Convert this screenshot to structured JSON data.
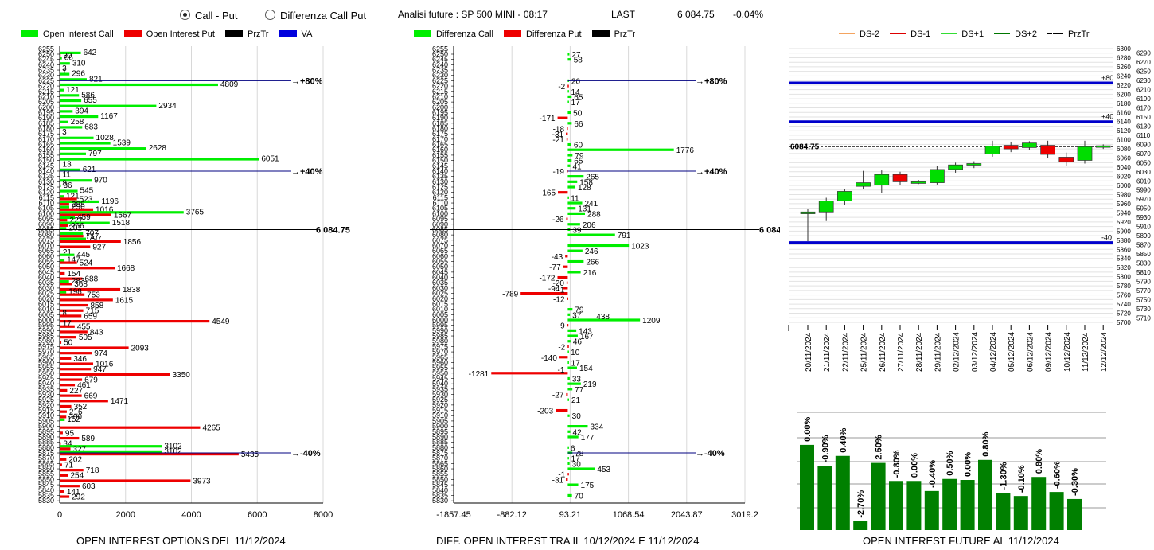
{
  "header": {
    "radio_call_put": "Call - Put",
    "radio_diff": "Differenza Call Put",
    "analisi": "Analisi future : SP 500 MINI - 08:17",
    "last_label": "LAST",
    "last_value": "6 084.75",
    "change": "-0.04%"
  },
  "legend1": {
    "call": "Open Interest Call",
    "put": "Open Interest Put",
    "prztr": "PrzTr",
    "va": "VA"
  },
  "legend2": {
    "call": "Differenza Call",
    "put": "Differenza Put",
    "prztr": "PrzTr"
  },
  "legend3": {
    "ds_2": "DS-2",
    "ds_1": "DS-1",
    "ds1": "DS+1",
    "ds2": "DS+2",
    "prztr": "PrzTr"
  },
  "colors": {
    "call": "#00ee00",
    "put": "#ee0000",
    "ref_line": "#000080",
    "candle_up": "#00dd00",
    "candle_down": "#ee0000",
    "bar_green": "#008000",
    "ds_2": "#f4a460",
    "ds_1": "#dd0000",
    "ds1": "#33dd33",
    "ds2": "#007700"
  },
  "footers": {
    "f1": "OPEN INTEREST OPTIONS DEL 11/12/2024",
    "f2": "DIFF. OPEN INTEREST TRA IL 10/12/2024 E 11/12/2024",
    "f3": "OPEN INTEREST FUTURE AL 11/12/2024"
  },
  "chart_data": [
    {
      "type": "bar",
      "orientation": "horizontal",
      "strikes": [
        6250,
        6245,
        6240,
        6235,
        6230,
        6225,
        6220,
        6215,
        6210,
        6205,
        6200,
        6195,
        6190,
        6185,
        6180,
        6175,
        6170,
        6165,
        6160,
        6155,
        6150,
        6145,
        6140,
        6135,
        6130,
        6125,
        6120,
        6115,
        6110,
        6105,
        6100,
        6095,
        6090,
        6085,
        6080,
        6075,
        6070,
        6065,
        6060,
        6055,
        6050,
        6045,
        6040,
        6035,
        6030,
        6025,
        6020,
        6015,
        6010,
        6005,
        6000,
        5995,
        5990,
        5985,
        5980,
        5975,
        5970,
        5965,
        5960,
        5955,
        5950,
        5945,
        5940,
        5935,
        5930,
        5925,
        5920,
        5915,
        5910,
        5905,
        5900,
        5895,
        5890,
        5885,
        5880,
        5875,
        5870,
        5865,
        5860,
        5855,
        5850,
        5845,
        5840,
        5835,
        5830
      ],
      "extra_tick": 6255,
      "call_values": {
        "6250": 642,
        "6245": 66,
        "6240": 310,
        "6235": 3,
        "6230": 296,
        "6225": 821,
        "6220": 4809,
        "6215": 121,
        "6210": 586,
        "6205": 655,
        "6200": 2934,
        "6195": 394,
        "6190": 1167,
        "6185": 258,
        "6180": 683,
        "6175": 3,
        "6170": 1028,
        "6165": 1539,
        "6160": 2628,
        "6155": 797,
        "6150": 6051,
        "6145": 13,
        "6140": 621,
        "6135": 11,
        "6130": 970,
        "6125": 36,
        "6120": 545,
        "6115": 121,
        "6110": 1196,
        "6105": 290,
        "6100": 3765,
        "6095": 459,
        "6090": 1518,
        "6085": 201,
        "6080": 707,
        "6075": 797,
        "6060": 445,
        "6055": 147,
        "6035": 283,
        "6025": 198,
        "6005": 8,
        "5995": 17,
        "5905": 152,
        "5880": 3102,
        "5875": 3102
      },
      "put_values": {
        "6250": 30,
        "6235": 1,
        "6130": 8,
        "6115": 523,
        "6110": 288,
        "6105": 1016,
        "6100": 1567,
        "6095": 227,
        "6090": 266,
        "6080": 717,
        "6075": 1856,
        "6070": 927,
        "6065": 21,
        "6055": 524,
        "6050": 1668,
        "6045": 154,
        "6040": 688,
        "6035": 368,
        "6030": 1838,
        "6025": 753,
        "6020": 1615,
        "6015": 858,
        "6010": 715,
        "6005": 659,
        "6000": 4549,
        "5995": 455,
        "5990": 843,
        "5985": 505,
        "5980": 50,
        "5975": 2093,
        "5970": 974,
        "5965": 346,
        "5960": 1016,
        "5955": 947,
        "5950": 3350,
        "5945": 679,
        "5940": 461,
        "5935": 227,
        "5930": 669,
        "5925": 1471,
        "5920": 352,
        "5915": 216,
        "5910": 200,
        "5900": 4265,
        "5895": 95,
        "5890": 589,
        "5885": 34,
        "5880": 327,
        "5875": 5435,
        "5870": 202,
        "5865": 71,
        "5860": 718,
        "5855": 254,
        "5850": 3973,
        "5845": 603,
        "5840": 141,
        "5835": 292
      },
      "xticks": [
        0,
        2000,
        4000,
        6000,
        8000
      ],
      "xlim": [
        0,
        8000
      ],
      "ref_lines": [
        {
          "strike": 6225,
          "label": "+80%"
        },
        {
          "strike": 6140,
          "label": "+40%"
        },
        {
          "strike": 5875,
          "label": "-40%"
        }
      ],
      "price_line": {
        "strike": 6085,
        "label": "6 084.75"
      }
    },
    {
      "type": "bar",
      "orientation": "horizontal",
      "diff_values": {
        "6250": 27,
        "6245": 58,
        "6225": 20,
        "6220": -2,
        "6215": 14,
        "6210": 65,
        "6205": 17,
        "6195": 50,
        "6190": -171,
        "6185": 66,
        "6180": -18,
        "6175": -31,
        "6170": -21,
        "6165": 60,
        "6160": 1776,
        "6155": 79,
        "6150": 65,
        "6145": 41,
        "6140": -19,
        "6135": 265,
        "6130": 158,
        "6125": 128,
        "6120": -165,
        "6115": 11,
        "6110": 241,
        "6105": 131,
        "6100": 288,
        "6095": -26,
        "6090": 206,
        "6085": 39,
        "6080": 791,
        "6070": 1023,
        "6065": 246,
        "6060": -43,
        "6055": 266,
        "6050": -77,
        "6045": 216,
        "6040": -172,
        "6035": -20,
        "6030": -94,
        "6025": -789,
        "6020": -12,
        "6010": 79,
        "6005": 37,
        "6000": 1209,
        "5995": -9,
        "5990": 143,
        "5985": 167,
        "5980": 46,
        "5975": -2,
        "5970": 10,
        "5965": -140,
        "5960": 17,
        "5955": 154,
        "5950": -1281,
        "5945": 33,
        "5940": 219,
        "5935": 77,
        "5930": -27,
        "5925": 21,
        "5915": -203,
        "5910": 30,
        "5900": 334,
        "5895": 42,
        "5890": 177,
        "5880": 6,
        "5875": 78,
        "5870": 17,
        "5865": 30,
        "5860": 453,
        "5855": -1,
        "5850": -31,
        "5845": 175,
        "5835": 70
      },
      "extra_labels": {
        "6000": 438,
        "5950": -1,
        "6025": -1
      },
      "xticks": [
        -1857.45,
        -882.12,
        93.21,
        1068.54,
        2043.87,
        3019.2
      ],
      "xtick_labels": [
        "-1857.45",
        "-882.12",
        "93.21",
        "1068.54",
        "2043.87",
        "3019.2"
      ],
      "xlim": [
        -1857.45,
        3019.2
      ],
      "ref_lines": [
        {
          "strike": 6225,
          "label": "+80%"
        },
        {
          "strike": 6140,
          "label": "+40%"
        },
        {
          "strike": 5875,
          "label": "-40%"
        }
      ],
      "price_line": {
        "strike": 6085,
        "label": "6 084.75"
      }
    },
    {
      "type": "candlestick",
      "dates": [
        "20/11/2024",
        "21/11/2024",
        "22/11/2024",
        "25/11/2024",
        "26/11/2024",
        "27/11/2024",
        "28/11/2024",
        "29/11/2024",
        "02/12/2024",
        "03/12/2024",
        "04/12/2024",
        "05/12/2024",
        "06/12/2024",
        "09/12/2024",
        "10/12/2024",
        "11/12/2024",
        "12/12/2024"
      ],
      "ohlc": [
        [
          5938,
          5948,
          5878,
          5942
        ],
        [
          5942,
          5973,
          5922,
          5966
        ],
        [
          5966,
          5992,
          5958,
          5987
        ],
        [
          5998,
          6032,
          5993,
          6006
        ],
        [
          6001,
          6033,
          5983,
          6024
        ],
        [
          6024,
          6030,
          6000,
          6008
        ],
        [
          6007,
          6012,
          6003,
          6008
        ],
        [
          6006,
          6042,
          6002,
          6035
        ],
        [
          6035,
          6050,
          6028,
          6045
        ],
        [
          6045,
          6053,
          6038,
          6048
        ],
        [
          6069,
          6098,
          6063,
          6086
        ],
        [
          6088,
          6096,
          6073,
          6080
        ],
        [
          6083,
          6097,
          6078,
          6093
        ],
        [
          6088,
          6098,
          6060,
          6068
        ],
        [
          6062,
          6072,
          6043,
          6052
        ],
        [
          6055,
          6098,
          6048,
          6085
        ],
        [
          6085,
          6090,
          6080,
          6087
        ]
      ],
      "ylim": [
        5700,
        6300
      ],
      "yticks": [
        5700,
        5710,
        5720,
        5730,
        5740,
        5750,
        5760,
        5770,
        5780,
        5790,
        5800,
        5810,
        5820,
        5830,
        5840,
        5850,
        5860,
        5870,
        5880,
        5890,
        5900,
        5910,
        5920,
        5930,
        5940,
        5950,
        5960,
        5970,
        5980,
        5990,
        6000,
        6010,
        6020,
        6030,
        6040,
        6050,
        6060,
        6070,
        6080,
        6090,
        6100,
        6110,
        6120,
        6130,
        6140,
        6150,
        6160,
        6170,
        6180,
        6190,
        6200,
        6210,
        6220,
        6230,
        6240,
        6250,
        6260,
        6270,
        6280,
        6290,
        6300
      ],
      "last_label": "6084.75",
      "last_value": 6084.75,
      "ref_levels": [
        {
          "value": 6225,
          "label": "+80"
        },
        {
          "value": 6140,
          "label": "+40"
        },
        {
          "value": 5875,
          "label": "-40"
        }
      ]
    },
    {
      "type": "bar",
      "values": [
        0.0,
        -0.9,
        0.4,
        -2.7,
        2.5,
        -0.8,
        0.0,
        -0.4,
        0.5,
        0.0,
        0.8,
        -1.3,
        -0.1,
        0.8,
        -0.6,
        -0.3
      ],
      "labels": [
        "0.00%",
        "-0.90%",
        "0.40%",
        "-2.70%",
        "2.50%",
        "-0.80%",
        "0.00%",
        "-0.40%",
        "0.50%",
        "0.00%",
        "0.80%",
        "-1.30%",
        "-0.10%",
        "0.80%",
        "-0.60%",
        "-0.30%"
      ],
      "heights_rel": [
        0.85,
        0.64,
        0.74,
        0.09,
        0.67,
        0.49,
        0.49,
        0.39,
        0.51,
        0.5,
        0.7,
        0.37,
        0.34,
        0.53,
        0.38,
        0.31
      ]
    }
  ]
}
